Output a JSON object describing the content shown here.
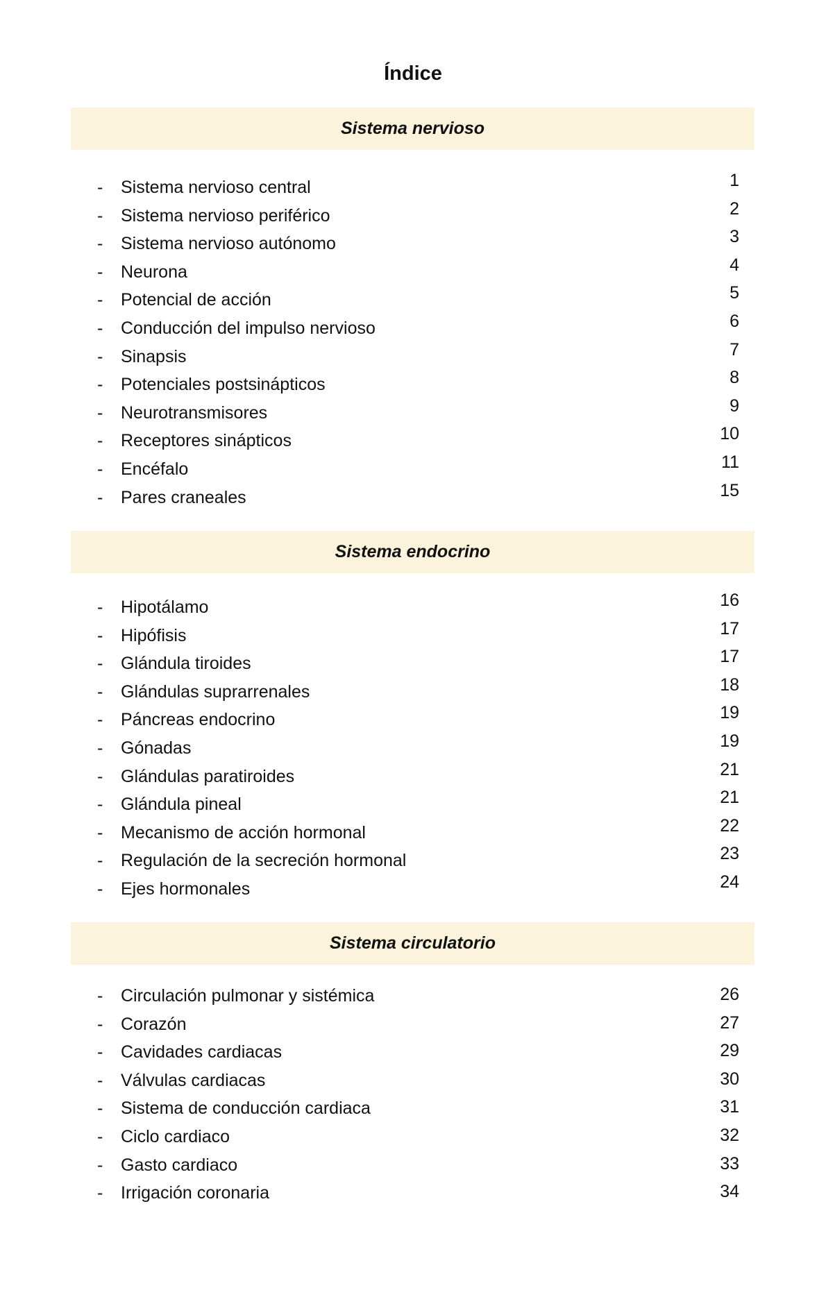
{
  "title": "Índice",
  "band_color": "#fcf3dc",
  "sections": [
    {
      "heading": "Sistema nervioso",
      "items": [
        {
          "label": "Sistema nervioso central",
          "page": "1"
        },
        {
          "label": "Sistema nervioso periférico",
          "page": "2"
        },
        {
          "label": "Sistema nervioso autónomo",
          "page": "3"
        },
        {
          "label": "Neurona",
          "page": "4"
        },
        {
          "label": "Potencial de acción",
          "page": "5"
        },
        {
          "label": "Conducción del impulso nervioso",
          "page": "6"
        },
        {
          "label": "Sinapsis",
          "page": "7"
        },
        {
          "label": "Potenciales postsinápticos",
          "page": "8"
        },
        {
          "label": "Neurotransmisores",
          "page": "9"
        },
        {
          "label": "Receptores sinápticos",
          "page": "10"
        },
        {
          "label": "Encéfalo",
          "page": "11"
        },
        {
          "label": "Pares craneales",
          "page": "15"
        }
      ]
    },
    {
      "heading": "Sistema endocrino",
      "items": [
        {
          "label": "Hipotálamo",
          "page": "16"
        },
        {
          "label": "Hipófisis",
          "page": "17"
        },
        {
          "label": "Glándula tiroides",
          "page": "17"
        },
        {
          "label": "Glándulas suprarrenales",
          "page": "18"
        },
        {
          "label": "Páncreas endocrino",
          "page": "19"
        },
        {
          "label": "Gónadas",
          "page": "19"
        },
        {
          "label": "Glándulas paratiroides",
          "page": "21"
        },
        {
          "label": "Glándula pineal",
          "page": "21"
        },
        {
          "label": "Mecanismo de acción hormonal",
          "page": "22"
        },
        {
          "label": "Regulación de la secreción hormonal",
          "page": "23"
        },
        {
          "label": "Ejes hormonales",
          "page": "24"
        }
      ]
    },
    {
      "heading": "Sistema circulatorio",
      "items": [
        {
          "label": "Circulación pulmonar y sistémica",
          "page": "26"
        },
        {
          "label": "Corazón",
          "page": "27"
        },
        {
          "label": "Cavidades cardiacas",
          "page": "29"
        },
        {
          "label": "Válvulas cardiacas",
          "page": "30"
        },
        {
          "label": "Sistema de conducción cardiaca",
          "page": "31"
        },
        {
          "label": "Ciclo cardiaco",
          "page": "32"
        },
        {
          "label": "Gasto cardiaco",
          "page": "33"
        },
        {
          "label": "Irrigación coronaria",
          "page": "34"
        }
      ]
    }
  ],
  "bullet": "-"
}
